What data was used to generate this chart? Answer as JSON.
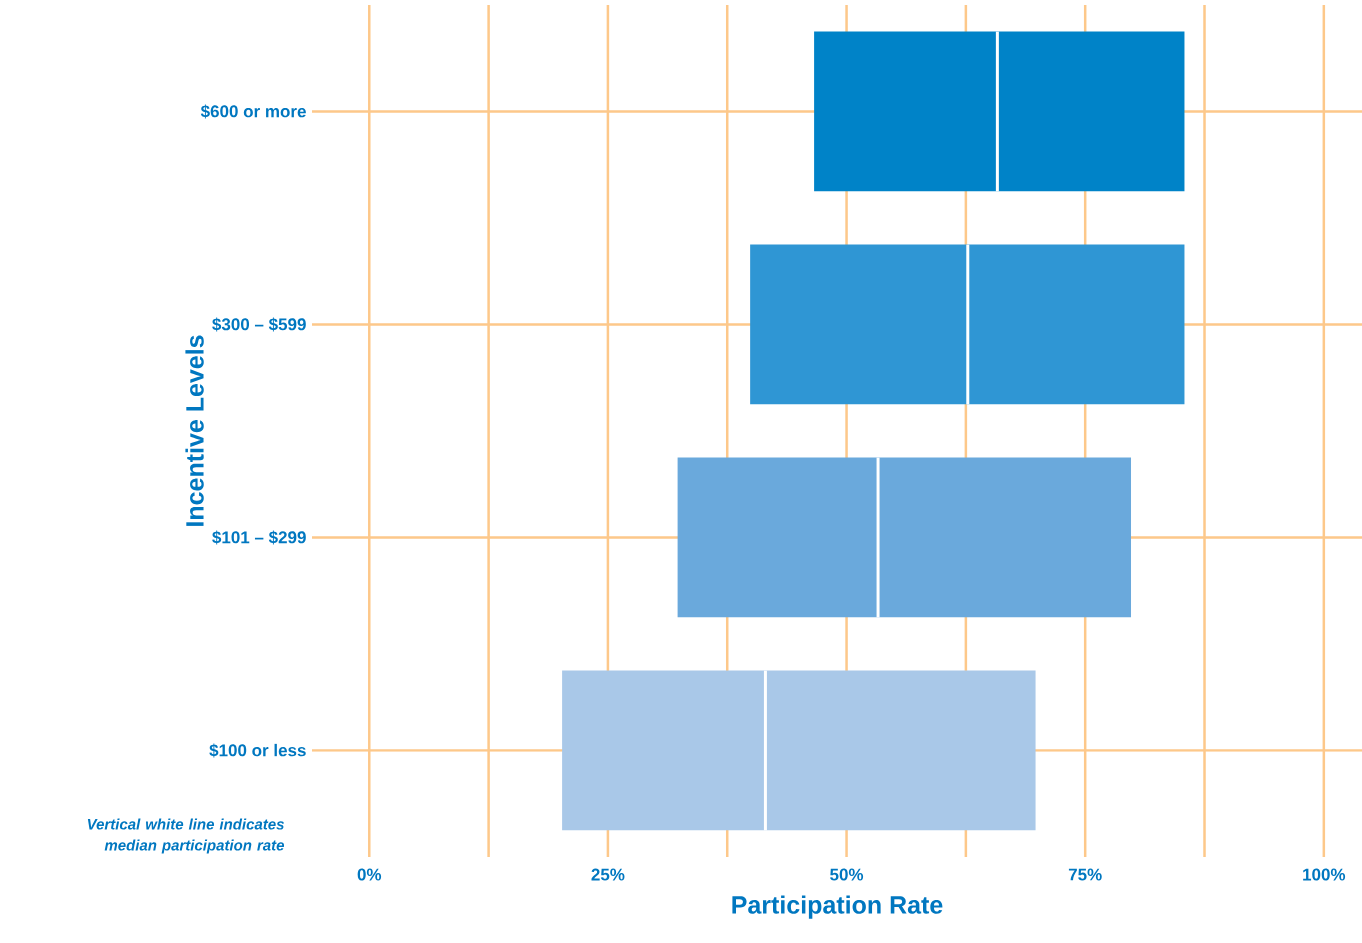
{
  "chart_data": {
    "type": "box",
    "orientation": "horizontal",
    "xlabel": "Participation Rate",
    "ylabel": "Incentive Levels",
    "categories": [
      "$600 or more",
      "$300 – $599",
      "$101 – $299",
      "$100 or less"
    ],
    "boxes": [
      {
        "q1": 46.6,
        "median": 65.8,
        "q3": 85.4
      },
      {
        "q1": 39.9,
        "median": 62.7,
        "q3": 85.4
      },
      {
        "q1": 32.3,
        "median": 53.3,
        "q3": 79.8
      },
      {
        "q1": 20.2,
        "median": 41.5,
        "q3": 69.8
      }
    ],
    "colors": [
      "#0083c8",
      "#2f96d4",
      "#6aa9dc",
      "#a9c8e8"
    ],
    "xlim": [
      -6,
      104
    ],
    "xticks": [
      {
        "value": 0,
        "label": "0%"
      },
      {
        "value": 12.5,
        "label": null
      },
      {
        "value": 25,
        "label": "25%"
      },
      {
        "value": 37.5,
        "label": null
      },
      {
        "value": 50,
        "label": "50%"
      },
      {
        "value": 62.5,
        "label": null
      },
      {
        "value": 75,
        "label": "75%"
      },
      {
        "value": 87.5,
        "label": null
      },
      {
        "value": 100,
        "label": "100%"
      }
    ],
    "grid": true,
    "annotations": [
      "Vertical white line indicates median participation rate"
    ]
  }
}
